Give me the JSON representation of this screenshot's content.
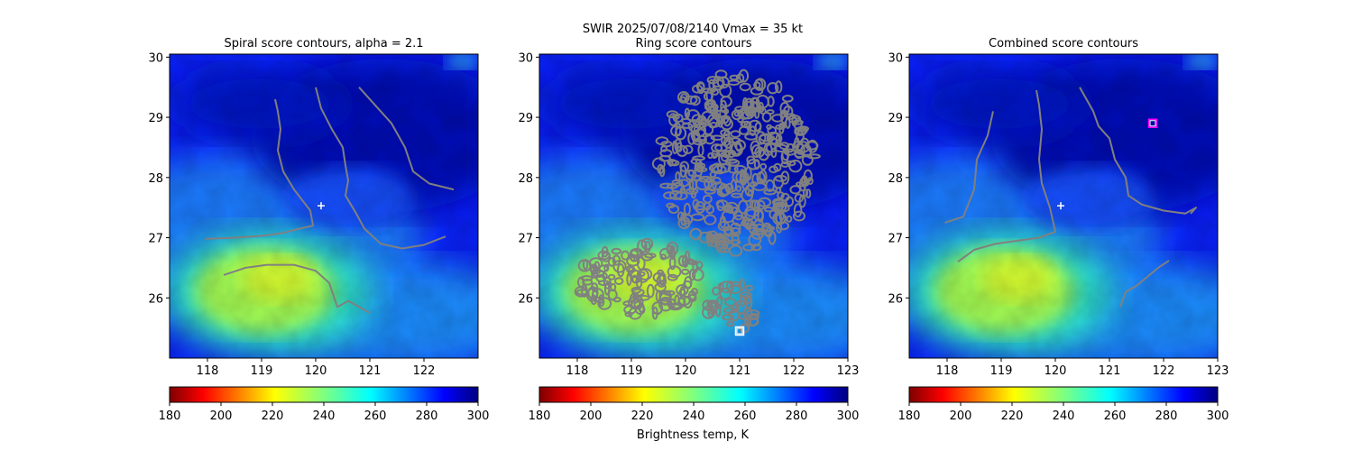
{
  "figure": {
    "suptitle_line1": "SWIR  2025/07/08/2140    Vmax = 35 kt",
    "colorbar_label": "Brightness temp, K"
  },
  "palette": {
    "contour": "#808080",
    "cold": "#00007f",
    "warm": "#7f0000",
    "marker_white": "#ffffff",
    "marker_magenta": "#ff00ff"
  },
  "chart_data": [
    {
      "type": "heatmap",
      "title": "Spiral score contours, alpha =  2.1",
      "xlim": [
        117.3,
        123.0
      ],
      "ylim": [
        25.0,
        30.05
      ],
      "xticks": [
        "118",
        "119",
        "120",
        "121",
        "122"
      ],
      "yticks": [
        "26",
        "27",
        "28",
        "29",
        "30"
      ],
      "colorbar": {
        "min": 180,
        "max": 300,
        "ticks": [
          "180",
          "200",
          "220",
          "240",
          "260",
          "280",
          "300"
        ],
        "cmap": "jet_r"
      },
      "center_marker": {
        "symbol": "+",
        "x": 120.1,
        "y": 27.53
      },
      "contours": [
        {
          "name": "",
          "points": [
            [
              117.96,
              26.98
            ],
            [
              118.5,
              27.0
            ],
            [
              119.0,
              27.03
            ],
            [
              119.4,
              27.08
            ],
            [
              119.7,
              27.15
            ],
            [
              119.95,
              27.2
            ],
            [
              119.9,
              27.45
            ],
            [
              119.6,
              27.8
            ],
            [
              119.4,
              28.1
            ],
            [
              119.3,
              28.45
            ],
            [
              119.35,
              28.8
            ],
            [
              119.3,
              29.1
            ],
            [
              119.25,
              29.3
            ]
          ]
        },
        {
          "name": "",
          "points": [
            [
              118.3,
              26.38
            ],
            [
              118.7,
              26.5
            ],
            [
              119.1,
              26.55
            ],
            [
              119.6,
              26.55
            ],
            [
              120.0,
              26.45
            ],
            [
              120.25,
              26.25
            ],
            [
              120.35,
              25.98
            ],
            [
              120.4,
              25.85
            ],
            [
              120.6,
              25.95
            ],
            [
              120.8,
              25.85
            ],
            [
              121.0,
              25.75
            ]
          ]
        },
        {
          "name": "",
          "points": [
            [
              120.0,
              29.5
            ],
            [
              120.1,
              29.15
            ],
            [
              120.3,
              28.8
            ],
            [
              120.5,
              28.5
            ],
            [
              120.55,
              28.2
            ],
            [
              120.6,
              27.95
            ],
            [
              120.55,
              27.7
            ],
            [
              120.75,
              27.4
            ],
            [
              120.9,
              27.15
            ],
            [
              121.2,
              26.9
            ],
            [
              121.6,
              26.82
            ],
            [
              122.0,
              26.88
            ],
            [
              122.4,
              27.02
            ]
          ]
        },
        {
          "name": "",
          "points": [
            [
              120.8,
              29.5
            ],
            [
              121.1,
              29.2
            ],
            [
              121.4,
              28.9
            ],
            [
              121.65,
              28.5
            ],
            [
              121.8,
              28.1
            ],
            [
              122.1,
              27.9
            ],
            [
              122.55,
              27.8
            ]
          ]
        }
      ],
      "markers": []
    },
    {
      "type": "heatmap",
      "title": "Ring score contours",
      "xlim": [
        117.3,
        123.0
      ],
      "ylim": [
        25.0,
        30.05
      ],
      "xticks": [
        "118",
        "119",
        "120",
        "121",
        "122",
        "123"
      ],
      "yticks": [
        "26",
        "27",
        "28",
        "29",
        "30"
      ],
      "colorbar": {
        "min": 180,
        "max": 300,
        "ticks": [
          "180",
          "200",
          "220",
          "240",
          "260",
          "280",
          "300"
        ],
        "cmap": "jet_r"
      },
      "contour_regions": [
        {
          "name": "",
          "center": [
            120.95,
            28.25
          ],
          "radius_x": 1.45,
          "radius_y": 1.5
        },
        {
          "name": "",
          "center": [
            119.2,
            26.3
          ],
          "radius_x": 1.2,
          "radius_y": 0.6
        },
        {
          "name": "",
          "center": [
            120.9,
            25.85
          ],
          "radius_x": 0.5,
          "radius_y": 0.4
        }
      ],
      "markers": [
        {
          "symbol": "square",
          "x": 121.0,
          "y": 25.45,
          "color": "#ffffff"
        }
      ]
    },
    {
      "type": "heatmap",
      "title": "Combined score contours",
      "xlim": [
        117.3,
        123.0
      ],
      "ylim": [
        25.0,
        30.05
      ],
      "xticks": [
        "118",
        "119",
        "120",
        "121",
        "122",
        "123"
      ],
      "yticks": [
        "26",
        "27",
        "28",
        "29",
        "30"
      ],
      "colorbar": {
        "min": 180,
        "max": 300,
        "ticks": [
          "180",
          "200",
          "220",
          "240",
          "260",
          "280",
          "300"
        ],
        "cmap": "jet_r"
      },
      "center_marker": {
        "symbol": "+",
        "x": 120.1,
        "y": 27.53
      },
      "contours": [
        {
          "name": "",
          "points": [
            [
              117.96,
              27.25
            ],
            [
              118.3,
              27.35
            ],
            [
              118.5,
              27.8
            ],
            [
              118.55,
              28.3
            ],
            [
              118.75,
              28.7
            ],
            [
              118.85,
              29.1
            ]
          ]
        },
        {
          "name": "",
          "points": [
            [
              118.2,
              26.6
            ],
            [
              118.5,
              26.8
            ],
            [
              118.9,
              26.9
            ],
            [
              119.3,
              26.95
            ],
            [
              119.7,
              27.0
            ],
            [
              120.0,
              27.1
            ],
            [
              119.9,
              27.5
            ],
            [
              119.75,
              27.9
            ],
            [
              119.7,
              28.3
            ],
            [
              119.75,
              28.8
            ],
            [
              119.7,
              29.2
            ],
            [
              119.65,
              29.45
            ]
          ]
        },
        {
          "name": "",
          "points": [
            [
              120.45,
              29.5
            ],
            [
              120.7,
              29.1
            ],
            [
              120.8,
              28.85
            ],
            [
              121.0,
              28.65
            ],
            [
              121.1,
              28.3
            ],
            [
              121.3,
              28.0
            ],
            [
              121.35,
              27.7
            ],
            [
              121.6,
              27.55
            ],
            [
              122.0,
              27.45
            ],
            [
              122.4,
              27.4
            ],
            [
              122.6,
              27.5
            ],
            [
              122.5,
              27.4
            ]
          ]
        },
        {
          "name": "",
          "points": [
            [
              121.2,
              25.85
            ],
            [
              121.3,
              26.1
            ],
            [
              121.5,
              26.2
            ],
            [
              121.7,
              26.35
            ],
            [
              121.9,
              26.5
            ],
            [
              122.1,
              26.62
            ]
          ]
        }
      ],
      "markers": [
        {
          "symbol": "square",
          "x": 121.8,
          "y": 28.9,
          "color": "#ff00ff"
        }
      ]
    }
  ]
}
